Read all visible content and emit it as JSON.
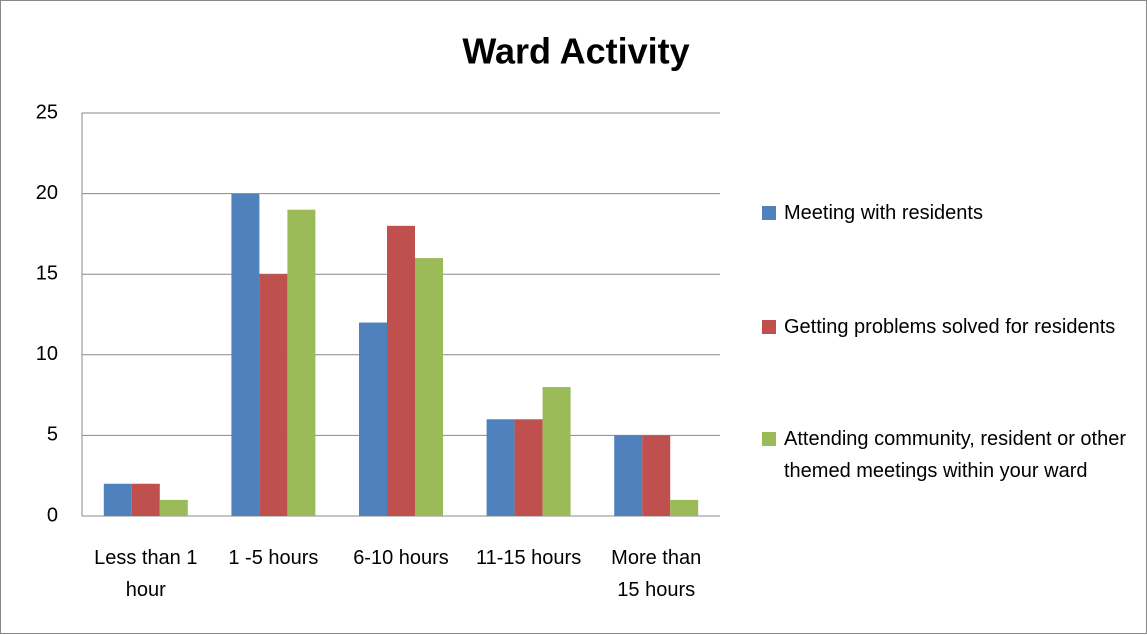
{
  "chart_data": {
    "type": "bar",
    "title": "Ward Activity",
    "categories": [
      "Less than 1 hour",
      "1 -5 hours",
      "6-10 hours",
      "11-15 hours",
      "More than 15 hours"
    ],
    "series": [
      {
        "name": "Meeting with residents",
        "color": "#4f81bd",
        "values": [
          2,
          20,
          12,
          6,
          5
        ]
      },
      {
        "name": "Getting problems solved for residents",
        "color": "#c0504d",
        "values": [
          2,
          15,
          18,
          6,
          5
        ]
      },
      {
        "name": "Attending community, resident or other themed meetings within your ward",
        "color": "#9bbb59",
        "values": [
          1,
          19,
          16,
          8,
          1
        ]
      }
    ],
    "ylim": [
      0,
      25
    ],
    "yticks": [
      0,
      5,
      10,
      15,
      20,
      25
    ],
    "grid": true,
    "legend": "right"
  }
}
